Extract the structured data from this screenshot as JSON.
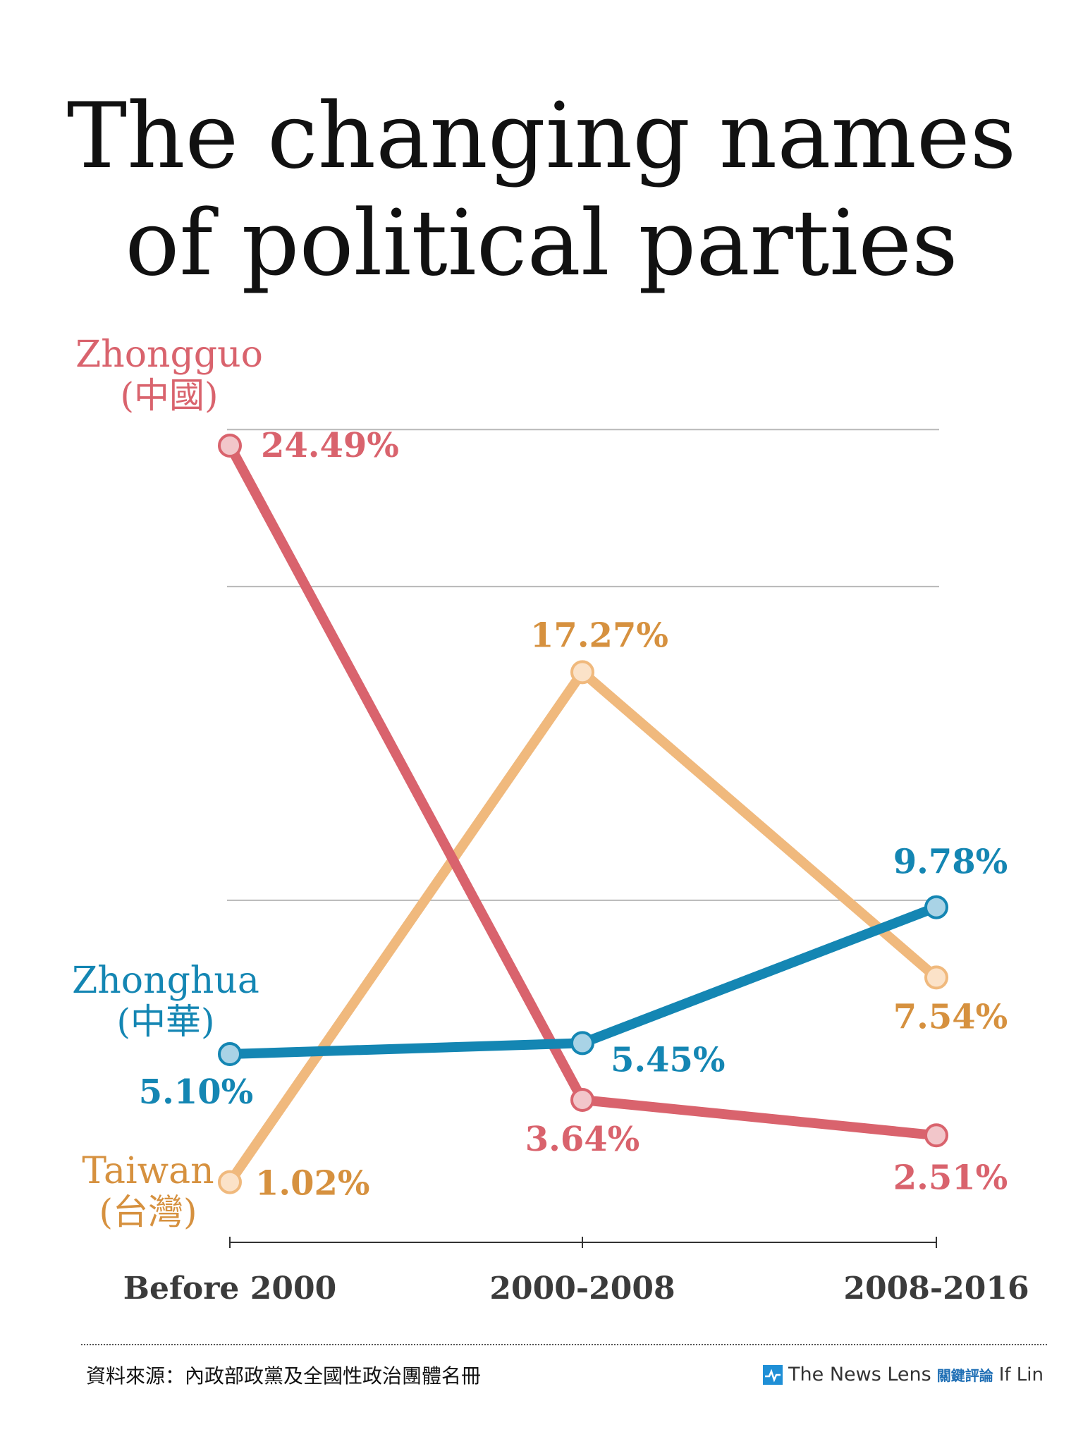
{
  "title": {
    "line1": "The changing names",
    "line2": "of political parties"
  },
  "chart_data": {
    "type": "line",
    "title": "The changing names of political parties",
    "categories": [
      "Before 2000",
      "2000-2008",
      "2008-2016"
    ],
    "ylim": [
      0,
      25
    ],
    "grid": true,
    "series": [
      {
        "key": "zhongguo",
        "name": "Zhongguo",
        "name_cn": "(中國)",
        "values": [
          24.49,
          3.64,
          2.51
        ],
        "labels": [
          "24.49%",
          "3.64%",
          "2.51%"
        ],
        "line_color": "#d9636d",
        "marker_fill": "#f2c6ca",
        "text_color": "#d9636d"
      },
      {
        "key": "taiwan",
        "name": "Taiwan",
        "name_cn": "(台灣)",
        "values": [
          1.02,
          17.27,
          7.54
        ],
        "labels": [
          "1.02%",
          "17.27%",
          "7.54%"
        ],
        "line_color": "#f0b97d",
        "marker_fill": "#fbe2c8",
        "text_color": "#d6913f"
      },
      {
        "key": "zhonghua",
        "name": "Zhonghua",
        "name_cn": "(中華)",
        "values": [
          5.1,
          5.45,
          9.78
        ],
        "labels": [
          "5.10%",
          "5.45%",
          "9.78%"
        ],
        "line_color": "#1486b3",
        "marker_fill": "#a9d3e6",
        "text_color": "#1486b3"
      }
    ]
  },
  "footer": {
    "source": "資料來源：內政部政黨及全國性政治團體名冊",
    "brand_name": "The News Lens",
    "brand_cn": "關鍵評論",
    "author": "If Lin"
  }
}
